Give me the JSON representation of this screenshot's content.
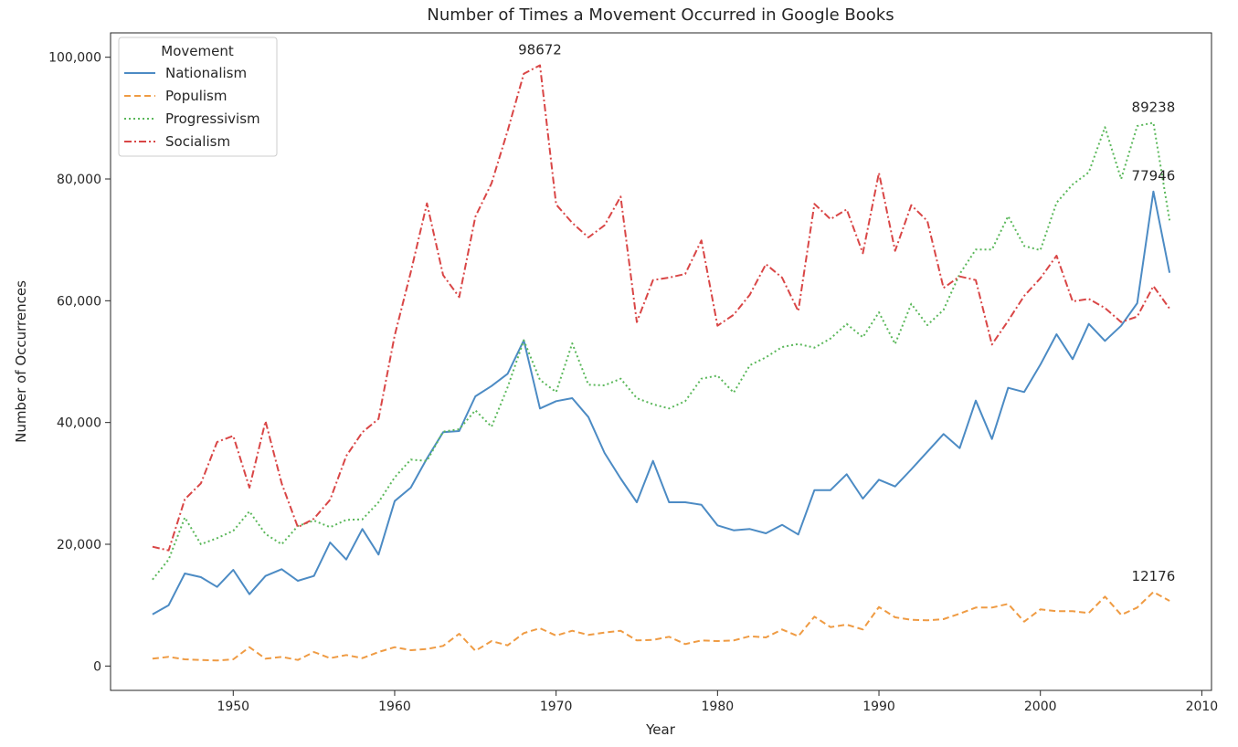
{
  "chart_data": {
    "type": "line",
    "title": "Number of Times a Movement Occurred in Google Books",
    "xlabel": "Year",
    "ylabel": "Number of Occurrences",
    "xlim": [
      1942.4,
      2010.6
    ],
    "ylim": [
      -4000,
      104000
    ],
    "xticks": [
      1950,
      1960,
      1970,
      1980,
      1990,
      2000,
      2010
    ],
    "xtick_labels": [
      "1950",
      "1960",
      "1970",
      "1980",
      "1990",
      "2000",
      "2010"
    ],
    "yticks": [
      0,
      20000,
      40000,
      60000,
      80000,
      100000
    ],
    "ytick_labels": [
      "0",
      "20,000",
      "40,000",
      "60,000",
      "80,000",
      "100,000"
    ],
    "grid": false,
    "legend": {
      "title": "Movement",
      "placement": "top-left"
    },
    "x": [
      1945,
      1946,
      1947,
      1948,
      1949,
      1950,
      1951,
      1952,
      1953,
      1954,
      1955,
      1956,
      1957,
      1958,
      1959,
      1960,
      1961,
      1962,
      1963,
      1964,
      1965,
      1966,
      1967,
      1968,
      1969,
      1970,
      1971,
      1972,
      1973,
      1974,
      1975,
      1976,
      1977,
      1978,
      1979,
      1980,
      1981,
      1982,
      1983,
      1984,
      1985,
      1986,
      1987,
      1988,
      1989,
      1990,
      1991,
      1992,
      1993,
      1994,
      1995,
      1996,
      1997,
      1998,
      1999,
      2000,
      2001,
      2002,
      2003,
      2004,
      2005,
      2006,
      2007,
      2008
    ],
    "series": [
      {
        "name": "Nationalism",
        "color": "#4c8bc4",
        "dash": "solid",
        "values": [
          8500,
          10000,
          15200,
          14600,
          13000,
          15800,
          11800,
          14800,
          15900,
          14000,
          14800,
          20300,
          17500,
          22500,
          18300,
          27100,
          29300,
          34100,
          38400,
          38600,
          44300,
          46000,
          48000,
          53500,
          42300,
          43500,
          44000,
          40900,
          35000,
          30800,
          26900,
          33700,
          26900,
          26900,
          26500,
          23100,
          22300,
          22500,
          21800,
          23200,
          21600,
          28900,
          28900,
          31500,
          27500,
          30600,
          29500,
          32300,
          35200,
          38100,
          35800,
          43600,
          37300,
          45700,
          45000,
          49500,
          54500,
          50400,
          56200,
          53400,
          55900,
          59600,
          77946,
          64600
        ]
      },
      {
        "name": "Populism",
        "color": "#ef9b43",
        "dash": "dashed",
        "values": [
          1200,
          1500,
          1100,
          1000,
          900,
          1100,
          3100,
          1200,
          1500,
          1000,
          2300,
          1300,
          1800,
          1300,
          2300,
          3100,
          2600,
          2800,
          3300,
          5300,
          2500,
          4100,
          3400,
          5400,
          6200,
          5000,
          5800,
          5100,
          5500,
          5800,
          4200,
          4300,
          4800,
          3600,
          4200,
          4100,
          4200,
          4900,
          4700,
          6000,
          4900,
          8100,
          6400,
          6800,
          6000,
          9700,
          8000,
          7600,
          7500,
          7700,
          8600,
          9600,
          9600,
          10200,
          7300,
          9300,
          9000,
          9000,
          8700,
          11400,
          8400,
          9600,
          12176,
          10700
        ]
      },
      {
        "name": "Progressivism",
        "color": "#5bb85b",
        "dash": "dotted",
        "values": [
          14200,
          17500,
          24400,
          20000,
          21000,
          22200,
          25400,
          21700,
          20000,
          23000,
          23900,
          22800,
          24000,
          24100,
          26900,
          31000,
          33900,
          33700,
          38500,
          38900,
          42000,
          39300,
          45800,
          53500,
          47000,
          45000,
          53000,
          46200,
          46100,
          47200,
          44000,
          43000,
          42300,
          43500,
          47200,
          47700,
          44900,
          49400,
          50700,
          52400,
          52900,
          52300,
          53800,
          56200,
          54000,
          58100,
          52900,
          59500,
          56000,
          58500,
          64400,
          68400,
          68400,
          73900,
          69000,
          68300,
          76100,
          79100,
          81100,
          88500,
          80000,
          88700,
          89238,
          73200
        ]
      },
      {
        "name": "Socialism",
        "color": "#d94646",
        "dash": "dashdot",
        "values": [
          19600,
          19000,
          27400,
          30000,
          36800,
          37800,
          29300,
          40200,
          30000,
          22800,
          24200,
          27300,
          34500,
          38400,
          40600,
          54300,
          64700,
          76000,
          64200,
          60600,
          73800,
          79300,
          87900,
          97300,
          98672,
          75800,
          72800,
          70400,
          72400,
          77100,
          56500,
          63400,
          63800,
          64400,
          69900,
          55900,
          57700,
          61000,
          66000,
          63800,
          58300,
          75900,
          73400,
          75000,
          67800,
          81000,
          68200,
          75700,
          73100,
          62100,
          64000,
          63400,
          52800,
          56700,
          60800,
          63700,
          67400,
          59900,
          60300,
          58800,
          56500,
          57400,
          62400,
          58700
        ]
      }
    ],
    "annotations": [
      {
        "x": 1969,
        "y": 98672,
        "text": "98672"
      },
      {
        "x": 2007,
        "y": 89238,
        "text": "89238"
      },
      {
        "x": 2007,
        "y": 77946,
        "text": "77946"
      },
      {
        "x": 2007,
        "y": 12176,
        "text": "12176"
      }
    ]
  }
}
